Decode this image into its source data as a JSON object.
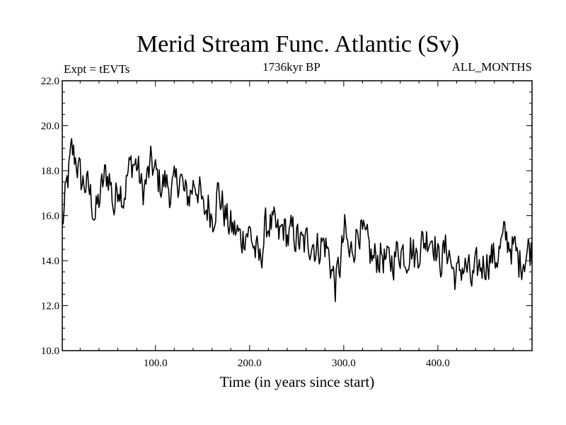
{
  "chart_data": {
    "type": "line",
    "title": "Merid Stream Func. Atlantic (Sv)",
    "subtitle_left": "Expt = tEVTs",
    "subtitle_center": "1736kyr BP",
    "subtitle_right": "ALL_MONTHS",
    "xlabel": "Time (in years since start)",
    "ylabel": "",
    "xlim": [
      1,
      500
    ],
    "ylim": [
      10.0,
      22.0
    ],
    "x_ticks": [
      100,
      200,
      300,
      400
    ],
    "x_tick_labels": [
      "100.0",
      "200.0",
      "300.0",
      "400.0"
    ],
    "y_ticks": [
      10,
      12,
      14,
      16,
      18,
      20,
      22
    ],
    "y_tick_labels": [
      "10.0",
      "12.0",
      "14.0",
      "16.0",
      "18.0",
      "20.0",
      "22.0"
    ],
    "grid": false,
    "series": [
      {
        "name": "Merid Stream Func. Atlantic",
        "color": "#000000",
        "x_start": 1,
        "x_step": 5,
        "values": [
          15.5,
          17.3,
          18.8,
          18.5,
          17.5,
          17.4,
          16.9,
          16.0,
          16.8,
          17.7,
          17.8,
          16.3,
          17.6,
          16.9,
          17.9,
          18.4,
          18.2,
          17.0,
          17.6,
          18.3,
          17.7,
          17.4,
          17.5,
          17.1,
          17.2,
          17.9,
          16.8,
          16.9,
          17.5,
          17.3,
          16.0,
          16.5,
          16.0,
          17.1,
          16.5,
          15.8,
          15.4,
          15.3,
          14.9,
          15.4,
          15.2,
          14.4,
          13.9,
          15.3,
          15.7,
          15.4,
          15.0,
          15.5,
          15.0,
          15.2,
          15.0,
          14.6,
          14.8,
          15.0,
          14.5,
          14.8,
          14.7,
          13.9,
          12.9,
          13.8,
          15.3,
          14.1,
          14.8,
          15.6,
          14.9,
          14.5,
          14.0,
          14.2,
          14.3,
          13.8,
          14.0,
          14.3,
          14.6,
          14.2,
          14.7,
          14.1,
          14.7,
          14.9,
          15.2,
          15.0,
          13.9,
          14.3,
          14.6,
          13.5,
          13.3,
          13.8,
          13.6,
          13.0,
          13.5,
          13.8,
          14.0,
          14.2,
          14.1,
          14.5,
          15.0,
          14.8,
          14.5,
          13.9,
          14.2,
          14.5
        ]
      }
    ]
  }
}
